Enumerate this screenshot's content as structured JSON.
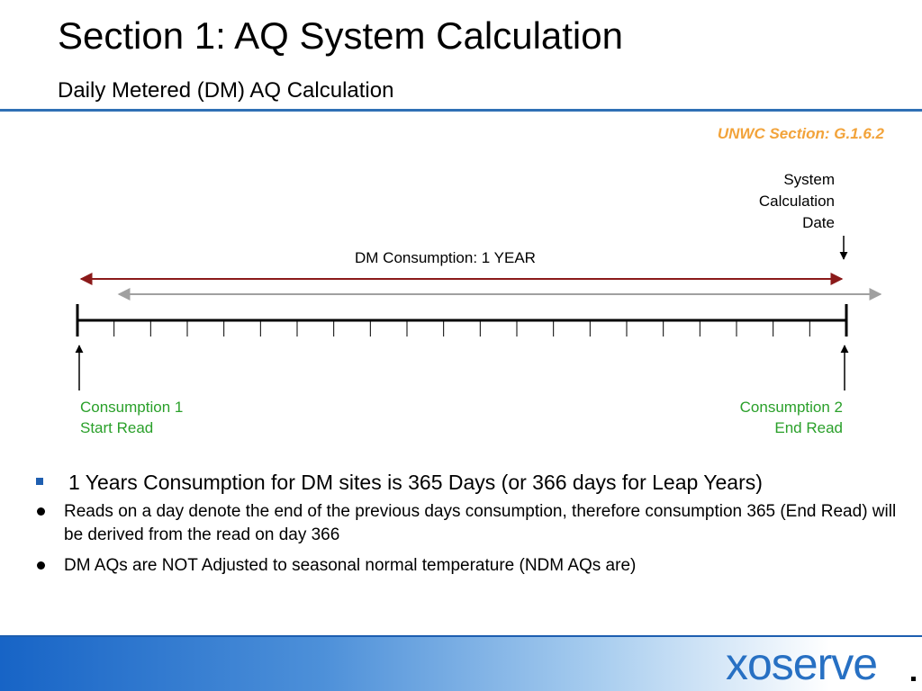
{
  "header": {
    "title": "Section 1: AQ System Calculation",
    "subtitle": "Daily Metered (DM) AQ Calculation",
    "reference": "UNWC Section: G.1.6.2"
  },
  "diagram": {
    "system_date_label": "System\nCalculation\nDate",
    "consumption_span_label": "DM Consumption: 1 YEAR",
    "start_read_label": "Consumption 1\nStart Read",
    "end_read_label": "Consumption 2\nEnd Read",
    "tick_count": 21,
    "colors": {
      "span_arrow": "#8b1a1a",
      "grey_arrow": "#a0a0a0",
      "read_labels": "#2aa02a"
    }
  },
  "bullets": [
    {
      "text": "1 Years Consumption for DM sites is 365 Days (or 366 days for Leap Years)",
      "marker": "square"
    },
    {
      "text": "Reads on a day denote the end of the previous days consumption, therefore consumption 365 (End Read) will be derived from the read on day 366",
      "marker": "dot"
    },
    {
      "text": "DM AQs are NOT Adjusted to seasonal normal temperature (NDM AQs are)",
      "marker": "dot"
    }
  ],
  "footer": {
    "logo_text": "xoserve",
    "logo_color": "#2770c3"
  }
}
